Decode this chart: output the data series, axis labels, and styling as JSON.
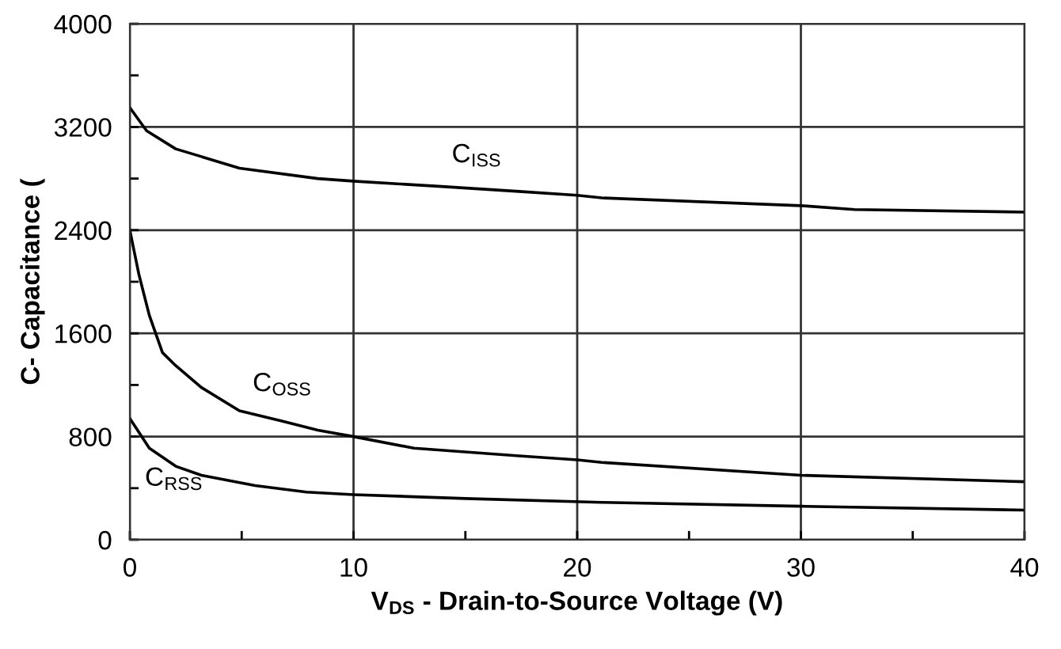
{
  "chart_data": {
    "type": "line",
    "xlabel": "V$_{DS}$ - Drain-to-Source Voltage (V)",
    "ylabel": "C- Capacitance (",
    "xlim": [
      0,
      40
    ],
    "ylim": [
      0,
      4000
    ],
    "xticks": [
      0,
      {
        "value": 5,
        "label": null
      },
      10,
      {
        "value": 15,
        "label": null
      },
      20,
      {
        "value": 25,
        "label": null
      },
      30,
      {
        "value": 35,
        "label": null
      },
      40
    ],
    "yticks": [
      0,
      {
        "value": 400,
        "label": null
      },
      800,
      {
        "value": 1200,
        "label": null
      },
      1600,
      {
        "value": 2000,
        "label": null
      },
      2400,
      {
        "value": 2800,
        "label": null
      },
      3200,
      {
        "value": 3600,
        "label": null
      },
      4000
    ],
    "grid": true,
    "marker": "none",
    "line_style": "solid",
    "series": [
      {
        "name": "C$_{ISS}$",
        "color": "#000000",
        "x": [
          0,
          0.75,
          2.05,
          3.2,
          4.9,
          8.4,
          10,
          13.8,
          17.4,
          20,
          21.1,
          30,
          32.4,
          40
        ],
        "values": [
          3350,
          3170,
          3030,
          2970,
          2880,
          2800,
          2780,
          2740,
          2700,
          2670,
          2650,
          2590,
          2560,
          2540
        ]
      },
      {
        "name": "C$_{OSS}$",
        "color": "#000000",
        "x": [
          0,
          0.4,
          0.87,
          1.46,
          2.05,
          3.2,
          4.9,
          6.8,
          8.4,
          10,
          12.7,
          17.4,
          20,
          21.1,
          30,
          40
        ],
        "values": [
          2400,
          2060,
          1740,
          1450,
          1350,
          1180,
          1000,
          920,
          850,
          800,
          710,
          650,
          620,
          600,
          500,
          450
        ]
      },
      {
        "name": "C$_{RSS}$",
        "color": "#000000",
        "x": [
          0,
          0.87,
          2.05,
          3.2,
          5.6,
          7.9,
          10,
          15,
          21.1,
          30,
          40
        ],
        "values": [
          940,
          710,
          570,
          500,
          420,
          370,
          350,
          320,
          290,
          260,
          230
        ]
      }
    ]
  }
}
